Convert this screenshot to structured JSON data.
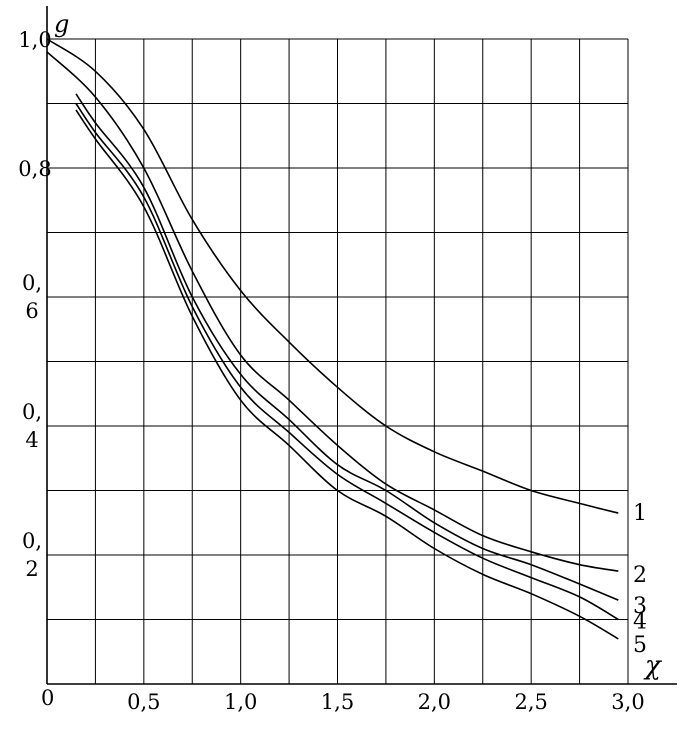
{
  "chart_data": {
    "type": "line",
    "xlabel": "χ",
    "ylabel": "g",
    "xlim": [
      0,
      3.0
    ],
    "ylim": [
      0,
      1.0
    ],
    "grid": true,
    "origin_label": "0",
    "x_tick_labels": [
      {
        "value": 0.5,
        "text": "0,5"
      },
      {
        "value": 1.0,
        "text": "1,0"
      },
      {
        "value": 1.5,
        "text": "1,5"
      },
      {
        "value": 2.0,
        "text": "2,0"
      },
      {
        "value": 2.5,
        "text": "2,5"
      },
      {
        "value": 3.0,
        "text": "3,0"
      }
    ],
    "y_tick_labels": [
      {
        "value": 1.0,
        "text": "1,0"
      },
      {
        "value": 0.8,
        "text": "0,8"
      },
      {
        "value": 0.6,
        "text": "0,\n6"
      },
      {
        "value": 0.4,
        "text": "0,\n4"
      },
      {
        "value": 0.2,
        "text": "0,\n2"
      }
    ],
    "series": [
      {
        "name": "1",
        "x": [
          0.0,
          0.25,
          0.5,
          0.75,
          1.0,
          1.25,
          1.5,
          1.75,
          2.0,
          2.25,
          2.5,
          2.75,
          2.95
        ],
        "y": [
          1.0,
          0.95,
          0.86,
          0.72,
          0.61,
          0.53,
          0.46,
          0.4,
          0.36,
          0.33,
          0.3,
          0.28,
          0.265
        ]
      },
      {
        "name": "2",
        "x": [
          0.0,
          0.25,
          0.5,
          0.75,
          1.0,
          1.25,
          1.5,
          1.75,
          2.0,
          2.25,
          2.5,
          2.75,
          2.95
        ],
        "y": [
          0.98,
          0.91,
          0.8,
          0.64,
          0.51,
          0.44,
          0.37,
          0.31,
          0.27,
          0.23,
          0.205,
          0.185,
          0.175
        ]
      },
      {
        "name": "3",
        "x": [
          0.15,
          0.25,
          0.5,
          0.75,
          1.0,
          1.25,
          1.5,
          1.75,
          2.0,
          2.25,
          2.5,
          2.75,
          2.95
        ],
        "y": [
          0.915,
          0.87,
          0.77,
          0.6,
          0.48,
          0.41,
          0.34,
          0.3,
          0.25,
          0.21,
          0.185,
          0.155,
          0.13
        ]
      },
      {
        "name": "4",
        "x": [
          0.15,
          0.25,
          0.5,
          0.75,
          1.0,
          1.25,
          1.5,
          1.75,
          2.0,
          2.25,
          2.5,
          2.75,
          2.95
        ],
        "y": [
          0.9,
          0.855,
          0.755,
          0.585,
          0.46,
          0.39,
          0.325,
          0.28,
          0.235,
          0.195,
          0.165,
          0.135,
          0.1
        ]
      },
      {
        "name": "5",
        "x": [
          0.15,
          0.25,
          0.5,
          0.75,
          1.0,
          1.25,
          1.5,
          1.75,
          2.0,
          2.25,
          2.5,
          2.75,
          2.95
        ],
        "y": [
          0.89,
          0.845,
          0.74,
          0.57,
          0.44,
          0.37,
          0.3,
          0.26,
          0.21,
          0.17,
          0.14,
          0.105,
          0.07
        ]
      }
    ]
  }
}
